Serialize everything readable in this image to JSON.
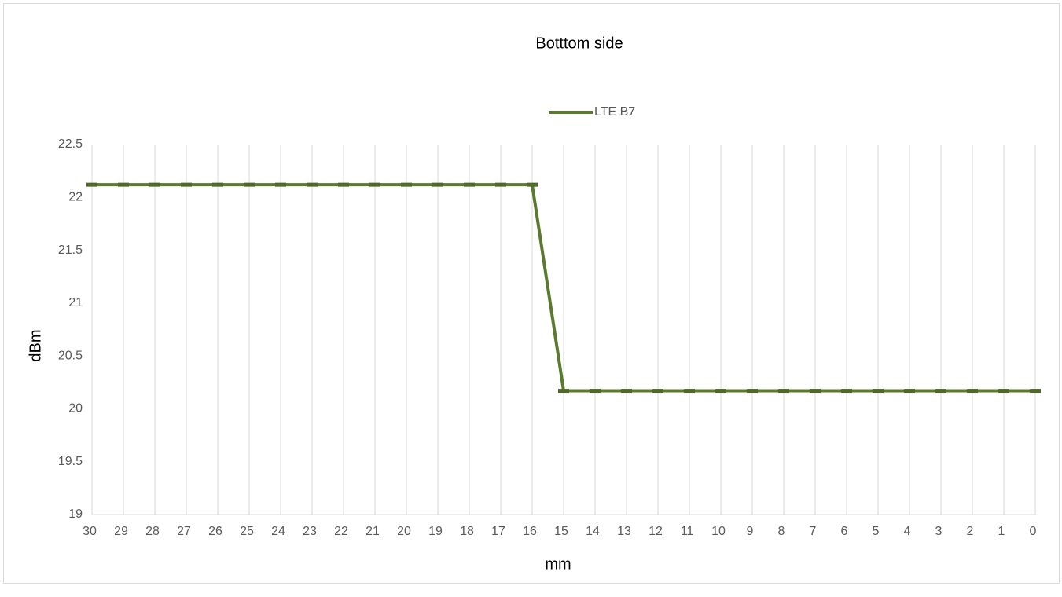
{
  "chart_data": {
    "type": "line",
    "title": "Botttom side",
    "x_label": "mm",
    "y_label": "dBm",
    "categories": [
      "30",
      "29",
      "28",
      "27",
      "26",
      "25",
      "24",
      "23",
      "22",
      "21",
      "20",
      "19",
      "18",
      "17",
      "16",
      "15",
      "14",
      "13",
      "12",
      "11",
      "10",
      "9",
      "8",
      "7",
      "6",
      "5",
      "4",
      "3",
      "2",
      "1",
      "0"
    ],
    "series": [
      {
        "name": "LTE B7",
        "color": "#5b7a2f",
        "values": [
          22.12,
          22.12,
          22.12,
          22.12,
          22.12,
          22.12,
          22.12,
          22.12,
          22.12,
          22.12,
          22.12,
          22.12,
          22.12,
          22.12,
          22.12,
          20.17,
          20.17,
          20.17,
          20.17,
          20.17,
          20.17,
          20.17,
          20.17,
          20.17,
          20.17,
          20.17,
          20.17,
          20.17,
          20.17,
          20.17,
          20.17
        ]
      }
    ],
    "ylim": [
      19,
      22.5
    ],
    "yticks": [
      19,
      19.5,
      20,
      20.5,
      21,
      21.5,
      22,
      22.5
    ],
    "grid": "vertical",
    "legend": "top"
  }
}
